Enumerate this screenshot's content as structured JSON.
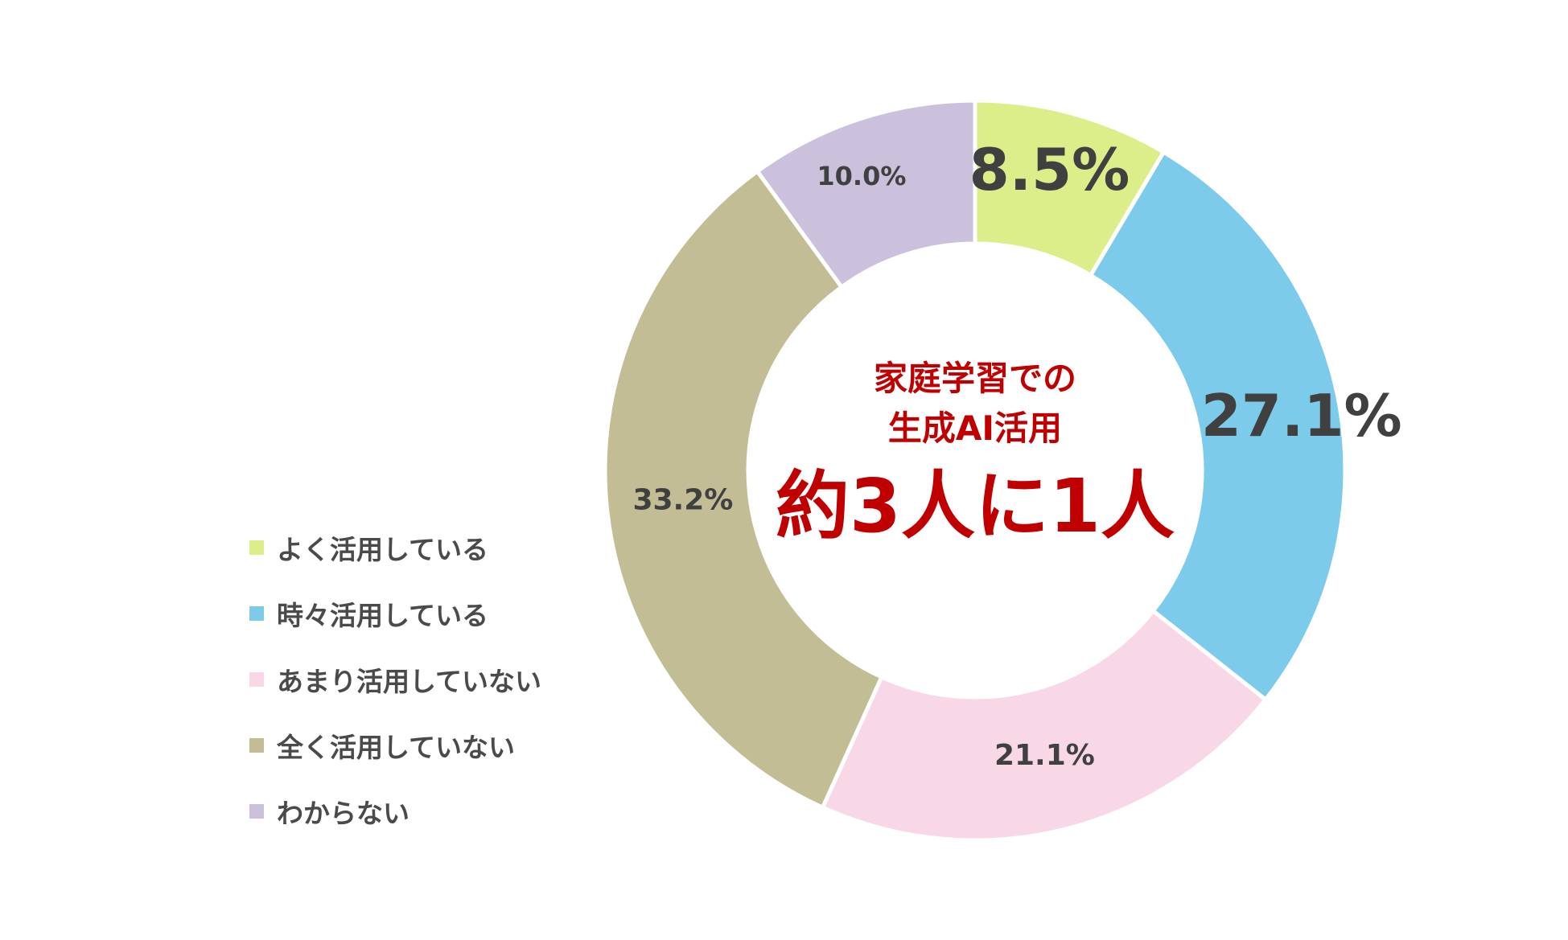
{
  "chart_data": {
    "type": "pie",
    "variant": "donut",
    "categories": [
      "よく活用している",
      "時々活用している",
      "あまり活用していない",
      "全く活用していない",
      "わからない"
    ],
    "values": [
      8.5,
      27.1,
      21.1,
      33.2,
      10.0
    ],
    "value_labels": [
      "8.5%",
      "27.1%",
      "21.1%",
      "33.2%",
      "10.0%"
    ],
    "colors": [
      "#dcee8a",
      "#7ccbea",
      "#f8d8e6",
      "#c2bd95",
      "#cbc1dc"
    ],
    "start_angle": "12 o'clock, clockwise",
    "legend_position": "left",
    "emphasized_labels": [
      "8.5%",
      "27.1%"
    ]
  },
  "center": {
    "line1": "家庭学習での",
    "line2": "生成AI活用",
    "highlight": "約3人に1人",
    "color": "#c00000"
  },
  "legend": {
    "items": [
      {
        "label": "よく活用している",
        "color": "#dcee8a"
      },
      {
        "label": "時々活用している",
        "color": "#7ccbea"
      },
      {
        "label": "あまり活用していない",
        "color": "#f8d8e6"
      },
      {
        "label": "全く活用していない",
        "color": "#c2bd95"
      },
      {
        "label": "わからない",
        "color": "#cbc1dc"
      }
    ]
  }
}
